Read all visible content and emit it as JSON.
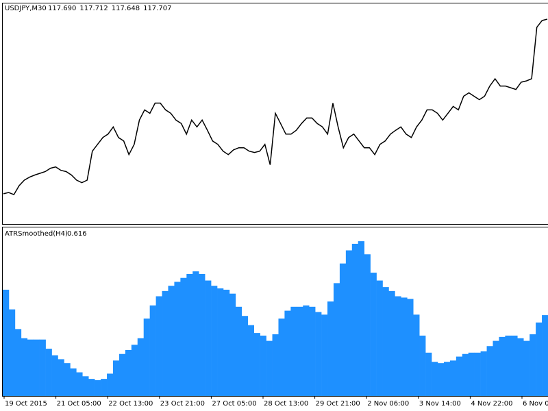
{
  "chart_data": [
    {
      "type": "line",
      "title": "USDJPY,M30",
      "quote": [
        "117.690",
        "117.712",
        "117.648",
        "117.707"
      ],
      "color": "#000000",
      "ylim": [
        118.34,
        123.52
      ],
      "values": [
        119.05,
        119.08,
        119.03,
        119.24,
        119.37,
        119.44,
        119.49,
        119.53,
        119.57,
        119.65,
        119.68,
        119.6,
        119.57,
        119.49,
        119.37,
        119.31,
        119.37,
        120.05,
        120.21,
        120.37,
        120.45,
        120.62,
        120.37,
        120.29,
        119.97,
        120.21,
        120.78,
        121.02,
        120.94,
        121.18,
        121.18,
        121.02,
        120.94,
        120.78,
        120.7,
        120.45,
        120.78,
        120.62,
        120.78,
        120.54,
        120.29,
        120.21,
        120.05,
        119.97,
        120.08,
        120.13,
        120.13,
        120.05,
        120.02,
        120.05,
        120.21,
        119.73,
        120.94,
        120.7,
        120.45,
        120.45,
        120.54,
        120.7,
        120.83,
        120.83,
        120.7,
        120.62,
        120.45,
        121.18,
        120.62,
        120.13,
        120.37,
        120.45,
        120.29,
        120.13,
        120.13,
        119.97,
        120.21,
        120.29,
        120.45,
        120.54,
        120.62,
        120.45,
        120.37,
        120.62,
        120.78,
        121.02,
        121.02,
        120.94,
        120.78,
        120.94,
        121.1,
        121.02,
        121.34,
        121.42,
        121.34,
        121.26,
        121.34,
        121.58,
        121.75,
        121.58,
        121.58,
        121.54,
        121.5,
        121.67,
        121.7,
        121.75,
        122.96,
        123.12,
        123.15
      ]
    },
    {
      "type": "bar",
      "title": "ATRSmoothed(H4)",
      "value_label": "0.616",
      "color": "#1e90ff",
      "ylim": [
        0,
        1.285
      ],
      "values": [
        0.81,
        0.66,
        0.51,
        0.44,
        0.43,
        0.43,
        0.43,
        0.36,
        0.31,
        0.28,
        0.25,
        0.21,
        0.18,
        0.15,
        0.13,
        0.12,
        0.13,
        0.17,
        0.27,
        0.32,
        0.35,
        0.39,
        0.44,
        0.59,
        0.69,
        0.76,
        0.8,
        0.84,
        0.87,
        0.9,
        0.93,
        0.95,
        0.93,
        0.88,
        0.84,
        0.82,
        0.81,
        0.78,
        0.68,
        0.61,
        0.54,
        0.48,
        0.46,
        0.42,
        0.47,
        0.59,
        0.65,
        0.68,
        0.68,
        0.69,
        0.68,
        0.64,
        0.62,
        0.72,
        0.86,
        1.01,
        1.11,
        1.16,
        1.18,
        1.08,
        0.94,
        0.88,
        0.83,
        0.8,
        0.76,
        0.75,
        0.74,
        0.62,
        0.46,
        0.33,
        0.26,
        0.25,
        0.26,
        0.27,
        0.3,
        0.32,
        0.33,
        0.33,
        0.34,
        0.38,
        0.42,
        0.45,
        0.46,
        0.46,
        0.44,
        0.42,
        0.47,
        0.56,
        0.616
      ],
      "x_labels": [
        "19 Oct 2015",
        "21 Oct 05:00",
        "22 Oct 13:00",
        "23 Oct 21:00",
        "27 Oct 05:00",
        "28 Oct 13:00",
        "29 Oct 21:00",
        "2 Nov 06:00",
        "3 Nov 14:00",
        "4 Nov 22:00",
        "6 Nov 0"
      ]
    }
  ]
}
